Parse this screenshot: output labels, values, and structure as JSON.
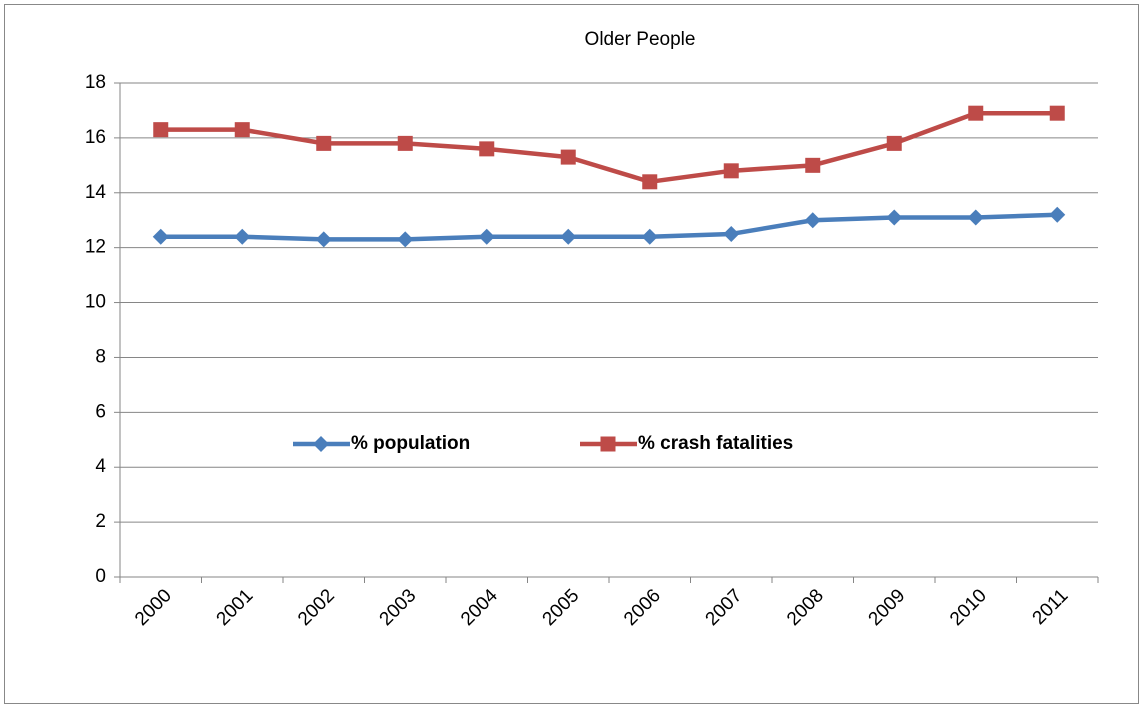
{
  "chart_data": {
    "type": "line",
    "title": "Older People",
    "categories": [
      "2000",
      "2001",
      "2002",
      "2003",
      "2004",
      "2005",
      "2006",
      "2007",
      "2008",
      "2009",
      "2010",
      "2011"
    ],
    "series": [
      {
        "name": "% population",
        "color": "#4a7ebb",
        "marker": "diamond",
        "values": [
          12.4,
          12.4,
          12.3,
          12.3,
          12.4,
          12.4,
          12.4,
          12.5,
          13.0,
          13.1,
          13.1,
          13.2
        ]
      },
      {
        "name": "% crash fatalities",
        "color": "#be4b48",
        "marker": "square",
        "values": [
          16.3,
          16.3,
          15.8,
          15.8,
          15.6,
          15.3,
          14.4,
          14.8,
          15.0,
          15.8,
          16.9,
          16.9
        ]
      }
    ],
    "ylim": [
      0,
      18
    ],
    "yticks": [
      0,
      2,
      4,
      6,
      8,
      10,
      12,
      14,
      16,
      18
    ],
    "grid": true,
    "legend": "center"
  }
}
